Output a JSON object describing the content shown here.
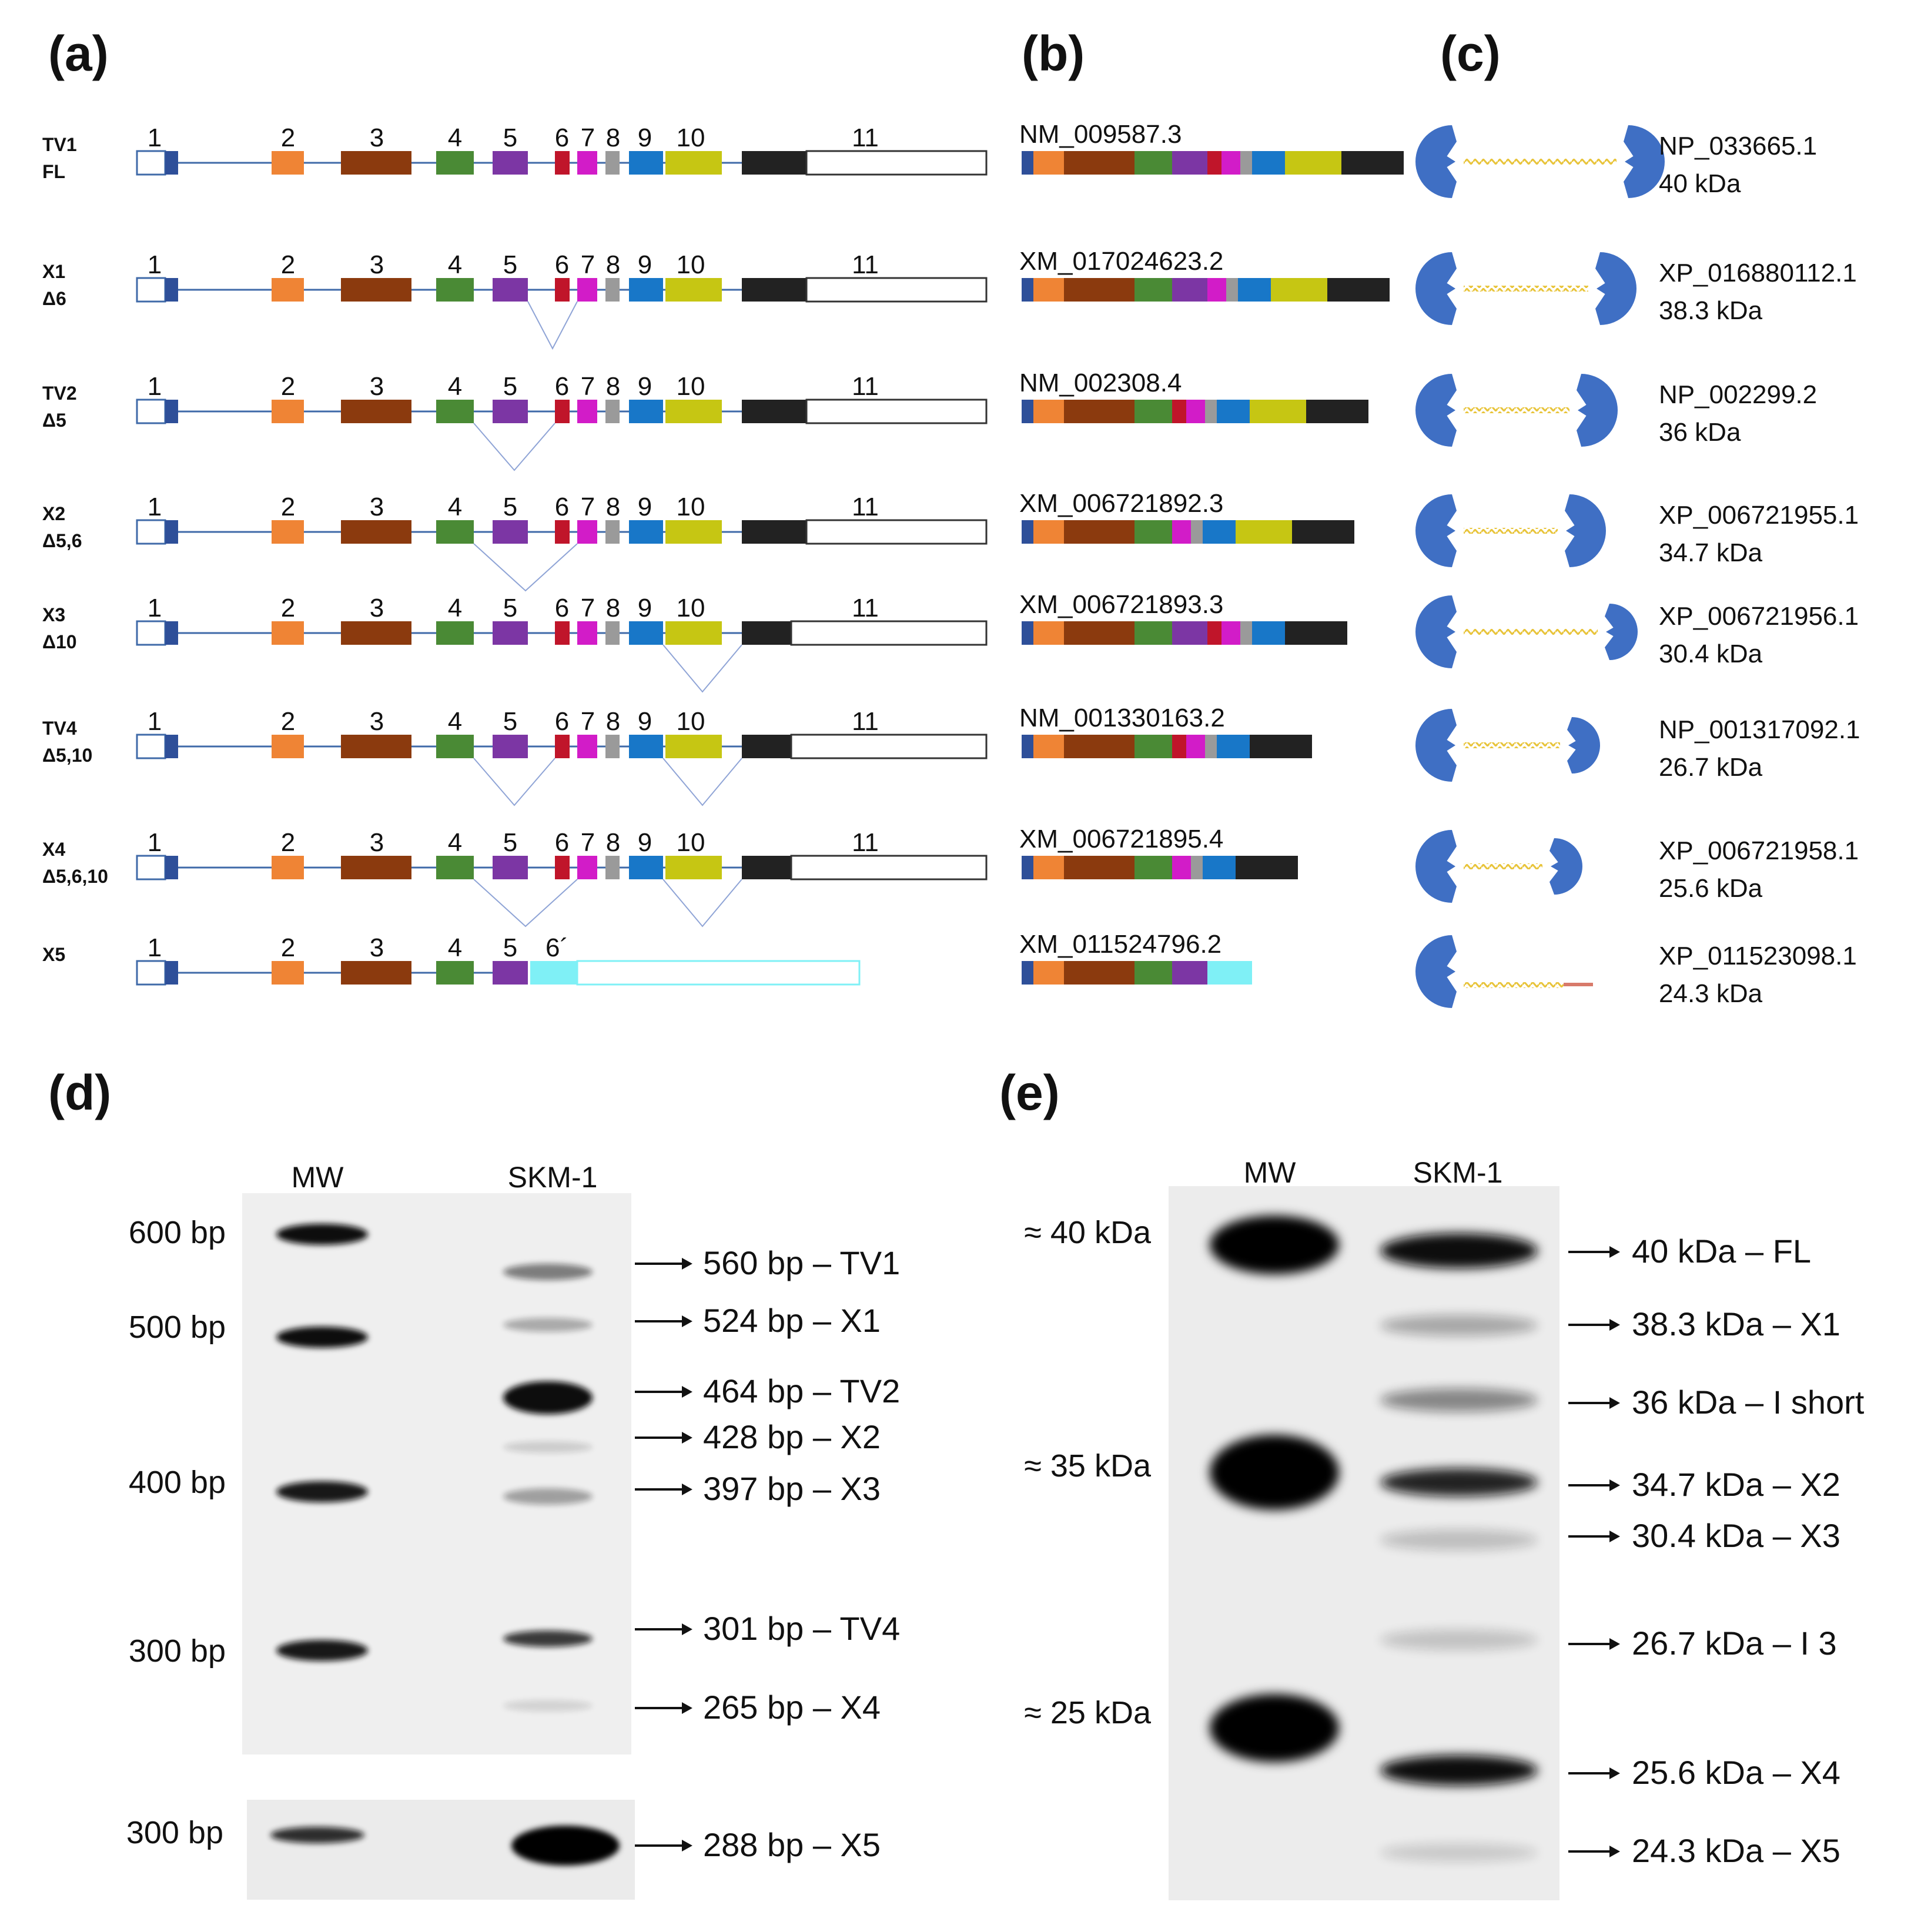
{
  "panels": {
    "a": "(a)",
    "b": "(b)",
    "c": "(c)",
    "d": "(d)",
    "e": "(e)"
  },
  "colors": {
    "ex1": "#2e4f99",
    "ex2": "#ef8435",
    "ex3": "#8b3a0e",
    "ex4": "#4a8a35",
    "ex5": "#7c36a4",
    "ex6": "#c0152a",
    "ex7": "#d21cc8",
    "ex8": "#9a9a9a",
    "ex9": "#1877c8",
    "ex10": "#c6c613",
    "ex11": "#222222",
    "ex6p": "#7ff0f6",
    "intron": "#3f6aa8",
    "protein": "#3f6fc4",
    "linker": "#e8c43a",
    "linker_x5": "#d87a6a"
  },
  "exon_numbers": [
    "1",
    "2",
    "3",
    "4",
    "5",
    "6",
    "7",
    "8",
    "9",
    "10",
    "11"
  ],
  "exon_number_6prime": "6´",
  "isoforms": [
    {
      "name": "TV1",
      "sub": "FL",
      "skip": [],
      "accession": "NM_009587.3",
      "protein": "NP_033665.1",
      "mass": "40 kDa",
      "exons": [
        "ex1",
        "ex2",
        "ex3",
        "ex4",
        "ex5",
        "ex6",
        "ex7",
        "ex8",
        "ex9",
        "ex10",
        "ex11"
      ]
    },
    {
      "name": "X1",
      "sub": "Δ6",
      "skip": [
        "6"
      ],
      "accession": "XM_017024623.2",
      "protein": "XP_016880112.1",
      "mass": "38.3 kDa",
      "exons": [
        "ex1",
        "ex2",
        "ex3",
        "ex4",
        "ex5",
        "ex7",
        "ex8",
        "ex9",
        "ex10",
        "ex11"
      ]
    },
    {
      "name": "TV2",
      "sub": "Δ5",
      "skip": [
        "5"
      ],
      "accession": "NM_002308.4",
      "protein": "NP_002299.2",
      "mass": "36 kDa",
      "exons": [
        "ex1",
        "ex2",
        "ex3",
        "ex4",
        "ex6",
        "ex7",
        "ex8",
        "ex9",
        "ex10",
        "ex11"
      ]
    },
    {
      "name": "X2",
      "sub": "Δ5,6",
      "skip": [
        "5",
        "6"
      ],
      "accession": "XM_006721892.3",
      "protein": "XP_006721955.1",
      "mass": "34.7 kDa",
      "exons": [
        "ex1",
        "ex2",
        "ex3",
        "ex4",
        "ex7",
        "ex8",
        "ex9",
        "ex10",
        "ex11"
      ]
    },
    {
      "name": "X3",
      "sub": "Δ10",
      "skip": [
        "10"
      ],
      "accession": "XM_006721893.3",
      "protein": "XP_006721956.1",
      "mass": "30.4 kDa",
      "exons": [
        "ex1",
        "ex2",
        "ex3",
        "ex4",
        "ex5",
        "ex6",
        "ex7",
        "ex8",
        "ex9",
        "ex11"
      ]
    },
    {
      "name": "TV4",
      "sub": "Δ5,10",
      "skip": [
        "5",
        "10"
      ],
      "accession": "NM_001330163.2",
      "protein": "NP_001317092.1",
      "mass": "26.7 kDa",
      "exons": [
        "ex1",
        "ex2",
        "ex3",
        "ex4",
        "ex6",
        "ex7",
        "ex8",
        "ex9",
        "ex11"
      ]
    },
    {
      "name": "X4",
      "sub": "Δ5,6,10",
      "skip": [
        "5",
        "6",
        "10"
      ],
      "accession": "XM_006721895.4",
      "protein": "XP_006721958.1",
      "mass": "25.6 kDa",
      "exons": [
        "ex1",
        "ex2",
        "ex3",
        "ex4",
        "ex7",
        "ex8",
        "ex9",
        "ex11"
      ]
    },
    {
      "name": "X5",
      "sub": "",
      "skip": [],
      "accession": "XM_011524796.2",
      "protein": "XP_011523098.1",
      "mass": "24.3 kDa",
      "exons": [
        "ex1",
        "ex2",
        "ex3",
        "ex4",
        "ex5",
        "ex6p"
      ]
    }
  ],
  "gel_d": {
    "lane_mw": "MW",
    "lane_sample": "SKM-1",
    "markers": [
      "600 bp",
      "500 bp",
      "400 bp",
      "300 bp"
    ],
    "marker_x5": "300 bp",
    "bands": [
      "560 bp – TV1",
      "524 bp – X1",
      "464 bp – TV2",
      "428 bp – X2",
      "397 bp – X3",
      "301 bp – TV4",
      "265 bp – X4",
      "288 bp – X5"
    ]
  },
  "blot_e": {
    "lane_mw": "MW",
    "lane_sample": "SKM-1",
    "markers": [
      "≈ 40 kDa",
      "≈ 35 kDa",
      "≈ 25 kDa"
    ],
    "bands": [
      "40 kDa – FL",
      "38.3 kDa – X1",
      "36 kDa – I short",
      "34.7 kDa – X2",
      "30.4 kDa – X3",
      "26.7 kDa – I 3",
      "25.6 kDa – X4",
      "24.3 kDa – X5"
    ]
  }
}
